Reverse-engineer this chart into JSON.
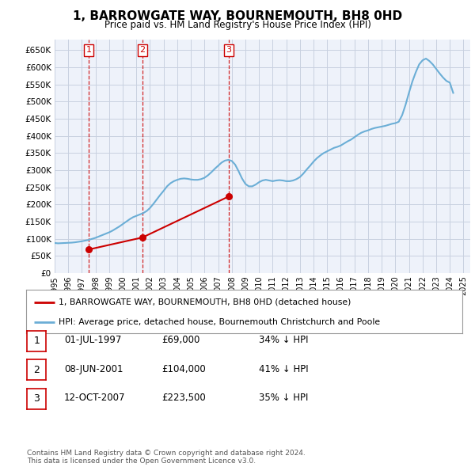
{
  "title": "1, BARROWGATE WAY, BOURNEMOUTH, BH8 0HD",
  "subtitle": "Price paid vs. HM Land Registry's House Price Index (HPI)",
  "legend_line1": "1, BARROWGATE WAY, BOURNEMOUTH, BH8 0HD (detached house)",
  "legend_line2": "HPI: Average price, detached house, Bournemouth Christchurch and Poole",
  "footer1": "Contains HM Land Registry data © Crown copyright and database right 2024.",
  "footer2": "This data is licensed under the Open Government Licence v3.0.",
  "transactions": [
    {
      "num": "1",
      "date": "01-JUL-1997",
      "price": "£69,000",
      "hpi": "34% ↓ HPI",
      "x_year": 1997.5,
      "y_val": 69000
    },
    {
      "num": "2",
      "date": "08-JUN-2001",
      "price": "£104,000",
      "hpi": "41% ↓ HPI",
      "x_year": 2001.44,
      "y_val": 104000
    },
    {
      "num": "3",
      "date": "12-OCT-2007",
      "price": "£223,500",
      "hpi": "35% ↓ HPI",
      "x_year": 2007.78,
      "y_val": 223500
    }
  ],
  "hpi_line_color": "#6baed6",
  "price_line_color": "#cc0000",
  "marker_color": "#cc0000",
  "grid_color": "#c8d0e0",
  "background_color": "#ffffff",
  "plot_bg_color": "#eef2fa",
  "ylim": [
    0,
    680000
  ],
  "xlim_start": 1995.0,
  "xlim_end": 2025.5,
  "yticks": [
    0,
    50000,
    100000,
    150000,
    200000,
    250000,
    300000,
    350000,
    400000,
    450000,
    500000,
    550000,
    600000,
    650000
  ],
  "xticks": [
    1995,
    1996,
    1997,
    1998,
    1999,
    2000,
    2001,
    2002,
    2003,
    2004,
    2005,
    2006,
    2007,
    2008,
    2009,
    2010,
    2011,
    2012,
    2013,
    2014,
    2015,
    2016,
    2017,
    2018,
    2019,
    2020,
    2021,
    2022,
    2023,
    2024,
    2025
  ],
  "hpi_data_x": [
    1995.0,
    1995.25,
    1995.5,
    1995.75,
    1996.0,
    1996.25,
    1996.5,
    1996.75,
    1997.0,
    1997.25,
    1997.5,
    1997.75,
    1998.0,
    1998.25,
    1998.5,
    1998.75,
    1999.0,
    1999.25,
    1999.5,
    1999.75,
    2000.0,
    2000.25,
    2000.5,
    2000.75,
    2001.0,
    2001.25,
    2001.5,
    2001.75,
    2002.0,
    2002.25,
    2002.5,
    2002.75,
    2003.0,
    2003.25,
    2003.5,
    2003.75,
    2004.0,
    2004.25,
    2004.5,
    2004.75,
    2005.0,
    2005.25,
    2005.5,
    2005.75,
    2006.0,
    2006.25,
    2006.5,
    2006.75,
    2007.0,
    2007.25,
    2007.5,
    2007.75,
    2008.0,
    2008.25,
    2008.5,
    2008.75,
    2009.0,
    2009.25,
    2009.5,
    2009.75,
    2010.0,
    2010.25,
    2010.5,
    2010.75,
    2011.0,
    2011.25,
    2011.5,
    2011.75,
    2012.0,
    2012.25,
    2012.5,
    2012.75,
    2013.0,
    2013.25,
    2013.5,
    2013.75,
    2014.0,
    2014.25,
    2014.5,
    2014.75,
    2015.0,
    2015.25,
    2015.5,
    2015.75,
    2016.0,
    2016.25,
    2016.5,
    2016.75,
    2017.0,
    2017.25,
    2017.5,
    2017.75,
    2018.0,
    2018.25,
    2018.5,
    2018.75,
    2019.0,
    2019.25,
    2019.5,
    2019.75,
    2020.0,
    2020.25,
    2020.5,
    2020.75,
    2021.0,
    2021.25,
    2021.5,
    2021.75,
    2022.0,
    2022.25,
    2022.5,
    2022.75,
    2023.0,
    2023.25,
    2023.5,
    2023.75,
    2024.0,
    2024.25
  ],
  "hpi_data_y": [
    88000,
    87000,
    87500,
    88000,
    88500,
    89000,
    90000,
    91500,
    93000,
    95000,
    97000,
    100000,
    103000,
    107000,
    111000,
    115000,
    119000,
    124000,
    130000,
    136000,
    143000,
    150000,
    157000,
    163000,
    167000,
    171000,
    175000,
    181000,
    190000,
    202000,
    215000,
    228000,
    240000,
    253000,
    262000,
    268000,
    272000,
    275000,
    276000,
    275000,
    273000,
    272000,
    272000,
    274000,
    278000,
    285000,
    294000,
    304000,
    313000,
    322000,
    328000,
    330000,
    327000,
    316000,
    297000,
    276000,
    260000,
    253000,
    253000,
    258000,
    265000,
    270000,
    272000,
    270000,
    268000,
    270000,
    271000,
    270000,
    268000,
    268000,
    270000,
    274000,
    280000,
    290000,
    302000,
    313000,
    325000,
    335000,
    343000,
    350000,
    355000,
    360000,
    365000,
    368000,
    372000,
    378000,
    384000,
    389000,
    396000,
    403000,
    409000,
    413000,
    416000,
    420000,
    423000,
    425000,
    427000,
    429000,
    432000,
    435000,
    437000,
    441000,
    460000,
    490000,
    525000,
    558000,
    585000,
    608000,
    620000,
    625000,
    618000,
    608000,
    595000,
    582000,
    570000,
    560000,
    555000,
    525000
  ],
  "price_data_x": [
    1997.5,
    2001.44,
    2007.78
  ],
  "price_data_y": [
    69000,
    104000,
    223500
  ],
  "vline_x": [
    1997.5,
    2001.44,
    2007.78
  ],
  "vline_labels": [
    "1",
    "2",
    "3"
  ]
}
